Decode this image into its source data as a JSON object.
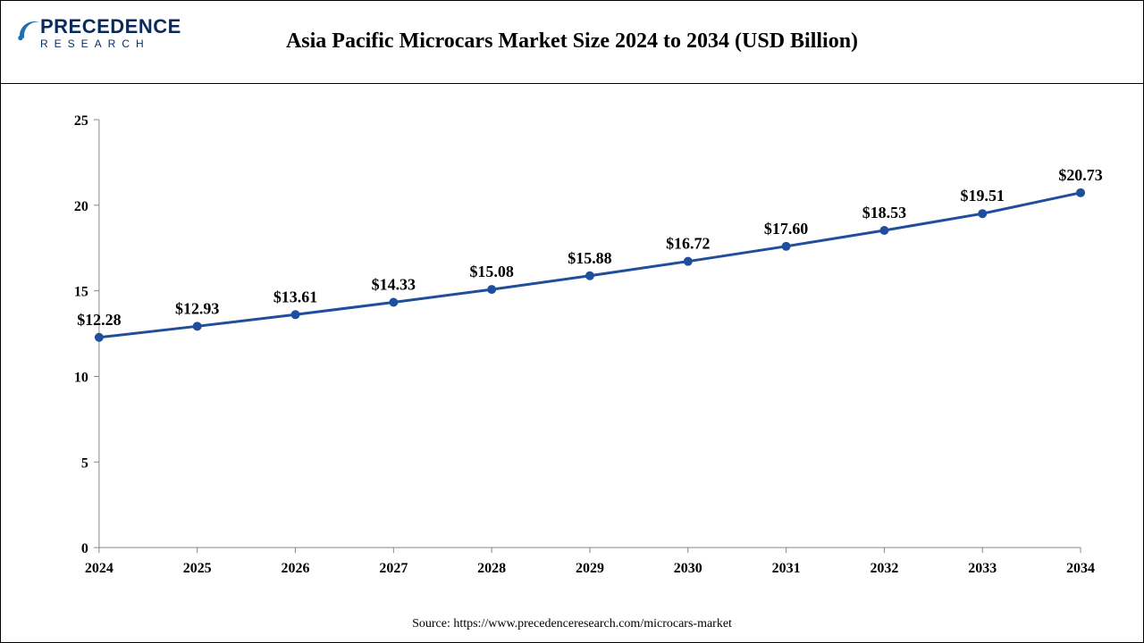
{
  "logo": {
    "top": "PRECEDENCE",
    "bottom": "RESEARCH",
    "color": "#0a2a5c"
  },
  "chart": {
    "type": "line",
    "title": "Asia Pacific Microcars Market Size 2024 to 2034 (USD Billion)",
    "title_fontsize": 24,
    "title_color": "#000000",
    "x_labels": [
      "2024",
      "2025",
      "2026",
      "2027",
      "2028",
      "2029",
      "2030",
      "2031",
      "2032",
      "2033",
      "2034"
    ],
    "values": [
      12.28,
      12.93,
      13.61,
      14.33,
      15.08,
      15.88,
      16.72,
      17.6,
      18.53,
      19.51,
      20.73
    ],
    "data_labels": [
      "$12.28",
      "$12.93",
      "$13.61",
      "$14.33",
      "$15.08",
      "$15.88",
      "$16.72",
      "$17.60",
      "$18.53",
      "$19.51",
      "$20.73"
    ],
    "data_label_fontsize": 18,
    "ylim": [
      0,
      25
    ],
    "ytick_step": 5,
    "ytick_labels": [
      "0",
      "5",
      "10",
      "15",
      "20",
      "25"
    ],
    "ytick_fontsize": 16,
    "xtick_fontsize": 16,
    "line_color": "#1f4e9c",
    "line_width": 3,
    "marker_color": "#1f4e9c",
    "marker_radius": 5,
    "axis_color": "#888888",
    "background_color": "#ffffff"
  },
  "source": {
    "text": "Source: https://www.precedenceresearch.com/microcars-market",
    "fontsize": 14,
    "color": "#000000"
  }
}
